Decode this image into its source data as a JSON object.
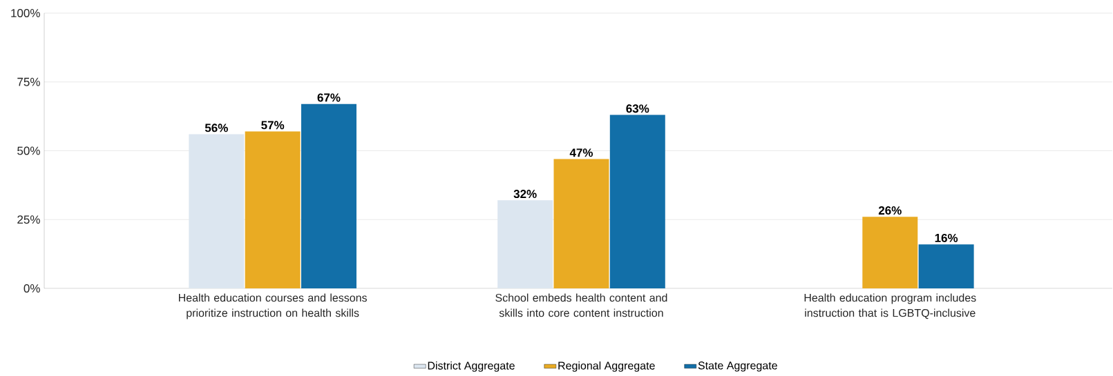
{
  "chart_data": {
    "type": "bar",
    "categories": [
      "Health education courses and lessons prioritize instruction on health skills",
      "School embeds health content and skills into core content instruction",
      "Health education program includes instruction that is LGBTQ-inclusive"
    ],
    "series": [
      {
        "name": "District Aggregate",
        "color": "#dce6f0",
        "values": [
          56,
          32,
          null
        ],
        "value_labels": [
          "56%",
          "32%",
          null
        ]
      },
      {
        "name": "Regional Aggregate",
        "color": "#e9ab23",
        "values": [
          57,
          47,
          26
        ],
        "value_labels": [
          "57%",
          "47%",
          "26%"
        ]
      },
      {
        "name": "State Aggregate",
        "color": "#126fa8",
        "values": [
          67,
          63,
          16
        ],
        "value_labels": [
          "67%",
          "63%",
          "16%"
        ]
      }
    ],
    "ylim": [
      0,
      100
    ],
    "yticks": [
      {
        "value": 0,
        "label": "0%"
      },
      {
        "value": 25,
        "label": "25%"
      },
      {
        "value": 50,
        "label": "50%"
      },
      {
        "value": 75,
        "label": "75%"
      },
      {
        "value": 100,
        "label": "100%"
      }
    ],
    "grid": "y",
    "legend": "bottom"
  }
}
